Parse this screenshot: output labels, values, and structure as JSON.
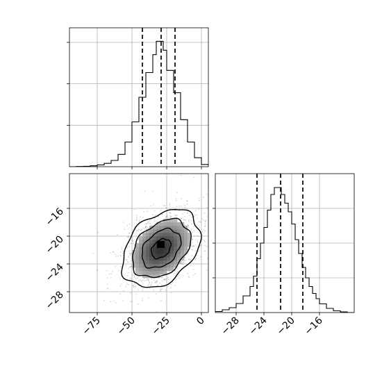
{
  "chart_data": {
    "type": "corner",
    "grid": true,
    "panels": [
      {
        "id": "x-marginal",
        "type": "histogram",
        "xlim": [
          -95,
          5
        ],
        "bin_edges": [
          -95,
          -90,
          -85,
          -80,
          -75,
          -70,
          -65,
          -60,
          -55,
          -50,
          -45,
          -40,
          -35,
          -32.5,
          -30,
          -27.5,
          -25,
          -20,
          -15,
          -10,
          -5,
          0,
          5
        ],
        "counts": [
          0,
          1,
          2,
          4,
          8,
          15,
          28,
          55,
          110,
          200,
          310,
          420,
          500,
          560,
          560,
          520,
          430,
          330,
          210,
          110,
          40,
          10,
          0
        ],
        "quantiles": [
          -42.5,
          -29,
          -19
        ],
        "ylim": [
          0,
          620
        ],
        "yticks": [
          185,
          370,
          555
        ]
      },
      {
        "id": "joint",
        "type": "hist2d",
        "xlim": [
          -95,
          5
        ],
        "ylim": [
          -31,
          -11
        ],
        "xticks": [
          -75,
          -50,
          -25,
          0
        ],
        "xtick_labels": [
          "−75",
          "−50",
          "−25",
          "0"
        ],
        "yticks": [
          -16,
          -20,
          -24,
          -28
        ],
        "ytick_labels": [
          "−16",
          "−20",
          "−24",
          "−28"
        ],
        "center": [
          -29,
          -21.8
        ],
        "std": [
          14,
          2.8
        ],
        "correlation": 0.35,
        "contour_levels_sigma": [
          0.5,
          1.0,
          1.5,
          2.0
        ],
        "peak_marker": [
          -29,
          -21.2
        ]
      },
      {
        "id": "y-marginal",
        "type": "histogram",
        "xlim": [
          -31,
          -11
        ],
        "bin_edges": [
          -31,
          -30,
          -29,
          -28,
          -27,
          -26,
          -25.5,
          -25,
          -24.5,
          -24,
          -23.5,
          -23,
          -22.5,
          -22,
          -21.5,
          -21,
          -20.5,
          -20,
          -19.5,
          -19,
          -18.5,
          -18,
          -17.5,
          -17,
          -16.5,
          -16,
          -15,
          -14,
          -13,
          -12,
          -11
        ],
        "counts": [
          3,
          8,
          14,
          26,
          48,
          75,
          105,
          155,
          200,
          245,
          295,
          340,
          360,
          360,
          340,
          315,
          290,
          255,
          210,
          170,
          130,
          100,
          75,
          55,
          40,
          25,
          12,
          5,
          2,
          0
        ],
        "quantiles": [
          -25,
          -21.6,
          -18.4
        ],
        "ylim": [
          0,
          400
        ],
        "yticks": [
          100,
          200,
          300
        ]
      }
    ],
    "tick_labels": {
      "x_bottom_left": [
        "−75",
        "−50",
        "−25",
        "0"
      ],
      "x_bottom_right": [
        "−28",
        "−24",
        "−20",
        "−16"
      ],
      "y_joint": [
        "−16",
        "−20",
        "−24",
        "−28"
      ]
    }
  }
}
